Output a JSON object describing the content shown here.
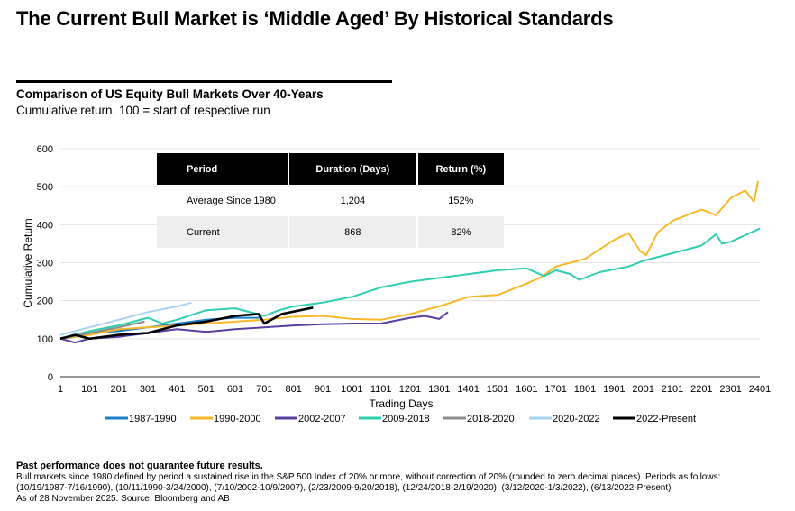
{
  "header": {
    "title": "The Current Bull Market is ‘Middle Aged’ By Historical Standards",
    "subtitle": "Comparison of US Equity Bull Markets Over 40-Years",
    "subtitle2": "Cumulative return, 100 = start of respective run"
  },
  "table": {
    "headers": [
      "Period",
      "Duration (Days)",
      "Return (%)"
    ],
    "rows": [
      [
        "Average Since 1980",
        "1,204",
        "152%"
      ],
      [
        "Current",
        "868",
        "82%"
      ]
    ]
  },
  "chart_data": {
    "type": "line",
    "xlabel": "Trading Days",
    "ylabel": "Cumulative Return",
    "xlim": [
      1,
      2401
    ],
    "ylim": [
      0,
      600
    ],
    "xticks": [
      "1",
      "101",
      "201",
      "301",
      "401",
      "501",
      "601",
      "701",
      "801",
      "901",
      "1001",
      "1101",
      "1201",
      "1301",
      "1401",
      "1501",
      "1601",
      "1701",
      "1801",
      "1901",
      "2001",
      "2101",
      "2201",
      "2301",
      "2401"
    ],
    "yticks": [
      "0",
      "100",
      "200",
      "300",
      "400",
      "500",
      "600"
    ],
    "grid": "horizontal",
    "legend": "bottom",
    "series": [
      {
        "name": "1987-1990",
        "color": "#1f7fc4",
        "points": [
          [
            1,
            100
          ],
          [
            51,
            105
          ],
          [
            101,
            115
          ],
          [
            201,
            120
          ],
          [
            301,
            130
          ],
          [
            401,
            140
          ],
          [
            501,
            150
          ],
          [
            601,
            155
          ],
          [
            690,
            155
          ]
        ]
      },
      {
        "name": "1990-2000",
        "color": "#f9b829",
        "points": [
          [
            1,
            100
          ],
          [
            101,
            110
          ],
          [
            201,
            125
          ],
          [
            301,
            130
          ],
          [
            401,
            135
          ],
          [
            501,
            140
          ],
          [
            601,
            145
          ],
          [
            701,
            150
          ],
          [
            801,
            158
          ],
          [
            901,
            160
          ],
          [
            1001,
            152
          ],
          [
            1101,
            150
          ],
          [
            1201,
            165
          ],
          [
            1301,
            185
          ],
          [
            1401,
            210
          ],
          [
            1501,
            215
          ],
          [
            1601,
            245
          ],
          [
            1651,
            262
          ],
          [
            1701,
            290
          ],
          [
            1801,
            310
          ],
          [
            1901,
            360
          ],
          [
            1951,
            378
          ],
          [
            1991,
            330
          ],
          [
            2011,
            320
          ],
          [
            2051,
            380
          ],
          [
            2101,
            410
          ],
          [
            2201,
            440
          ],
          [
            2251,
            425
          ],
          [
            2301,
            470
          ],
          [
            2351,
            490
          ],
          [
            2381,
            460
          ],
          [
            2395,
            515
          ]
        ]
      },
      {
        "name": "2002-2007",
        "color": "#5b3fa0",
        "points": [
          [
            1,
            100
          ],
          [
            51,
            90
          ],
          [
            101,
            100
          ],
          [
            201,
            105
          ],
          [
            301,
            115
          ],
          [
            401,
            125
          ],
          [
            501,
            118
          ],
          [
            601,
            125
          ],
          [
            701,
            130
          ],
          [
            801,
            135
          ],
          [
            901,
            138
          ],
          [
            1001,
            140
          ],
          [
            1101,
            140
          ],
          [
            1201,
            155
          ],
          [
            1251,
            160
          ],
          [
            1301,
            152
          ],
          [
            1331,
            170
          ]
        ]
      },
      {
        "name": "2009-2018",
        "color": "#2ecfb0",
        "points": [
          [
            1,
            100
          ],
          [
            101,
            120
          ],
          [
            201,
            135
          ],
          [
            301,
            155
          ],
          [
            351,
            140
          ],
          [
            401,
            150
          ],
          [
            501,
            175
          ],
          [
            601,
            180
          ],
          [
            701,
            160
          ],
          [
            751,
            175
          ],
          [
            801,
            185
          ],
          [
            901,
            195
          ],
          [
            1001,
            210
          ],
          [
            1101,
            235
          ],
          [
            1201,
            250
          ],
          [
            1301,
            260
          ],
          [
            1401,
            270
          ],
          [
            1501,
            280
          ],
          [
            1601,
            285
          ],
          [
            1661,
            265
          ],
          [
            1701,
            280
          ],
          [
            1751,
            270
          ],
          [
            1781,
            255
          ],
          [
            1851,
            275
          ],
          [
            1951,
            290
          ],
          [
            2001,
            305
          ],
          [
            2101,
            325
          ],
          [
            2201,
            345
          ],
          [
            2251,
            375
          ],
          [
            2271,
            350
          ],
          [
            2301,
            355
          ],
          [
            2401,
            390
          ]
        ]
      },
      {
        "name": "2018-2020",
        "color": "#8c8c8c",
        "points": [
          [
            1,
            100
          ],
          [
            101,
            115
          ],
          [
            201,
            130
          ],
          [
            290,
            145
          ]
        ]
      },
      {
        "name": "2020-2022",
        "color": "#a6d3ee",
        "points": [
          [
            1,
            110
          ],
          [
            101,
            130
          ],
          [
            201,
            150
          ],
          [
            301,
            170
          ],
          [
            401,
            185
          ],
          [
            451,
            195
          ]
        ]
      },
      {
        "name": "2022-Present",
        "color": "#000000",
        "points": [
          [
            1,
            100
          ],
          [
            51,
            110
          ],
          [
            101,
            100
          ],
          [
            201,
            110
          ],
          [
            301,
            115
          ],
          [
            401,
            135
          ],
          [
            501,
            145
          ],
          [
            601,
            160
          ],
          [
            681,
            165
          ],
          [
            701,
            140
          ],
          [
            761,
            165
          ],
          [
            868,
            182
          ]
        ]
      }
    ]
  },
  "footer": {
    "disclaimer": "Past performance does not guarantee future results.",
    "line1": "Bull markets since 1980 defined by period a sustained rise in the S&P 500 Index of 20% or more, without correction of 20% (rounded to zero decimal places). Periods as follows:",
    "line2": "(10/19/1987-7/16/1990), (10/11/1990-3/24/2000), (7/10/2002-10/9/2007), (2/23/2009-9/20/2018), (12/24/2018-2/19/2020), (3/12/2020-1/3/2022), (6/13/2022-Present)",
    "line3": "As of 28 November 2025. Source: Bloomberg and AB"
  }
}
